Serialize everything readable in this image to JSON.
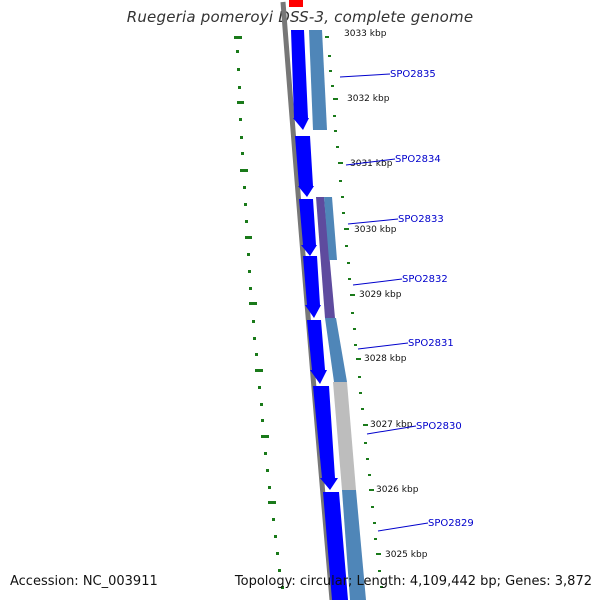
{
  "title": "Ruegeria pomeroyi DSS-3, complete genome",
  "accession": "Accession: NC_003911",
  "summary": "Topology: circular; Length: 4,109,442 bp; Genes: 3,872",
  "kbp_labels": [
    "3033 kbp",
    "3032 kbp",
    "3031 kbp",
    "3030 kbp",
    "3029 kbp",
    "3028 kbp",
    "3027 kbp",
    "3026 kbp",
    "3025 kbp"
  ],
  "genes": [
    "SPO2835",
    "SPO2834",
    "SPO2833",
    "SPO2832",
    "SPO2831",
    "SPO2830",
    "SPO2829"
  ],
  "colors": {
    "backbone": "#777777",
    "forward_cds": "#0000ff",
    "feature_blue": "#4f86b8",
    "feature_purple": "#5e4b9e",
    "feature_gray": "#bdbdbd",
    "gc_ticks": "#1a7a1a",
    "gene_label": "#0000cc",
    "origin_marker": "#ff0000"
  }
}
